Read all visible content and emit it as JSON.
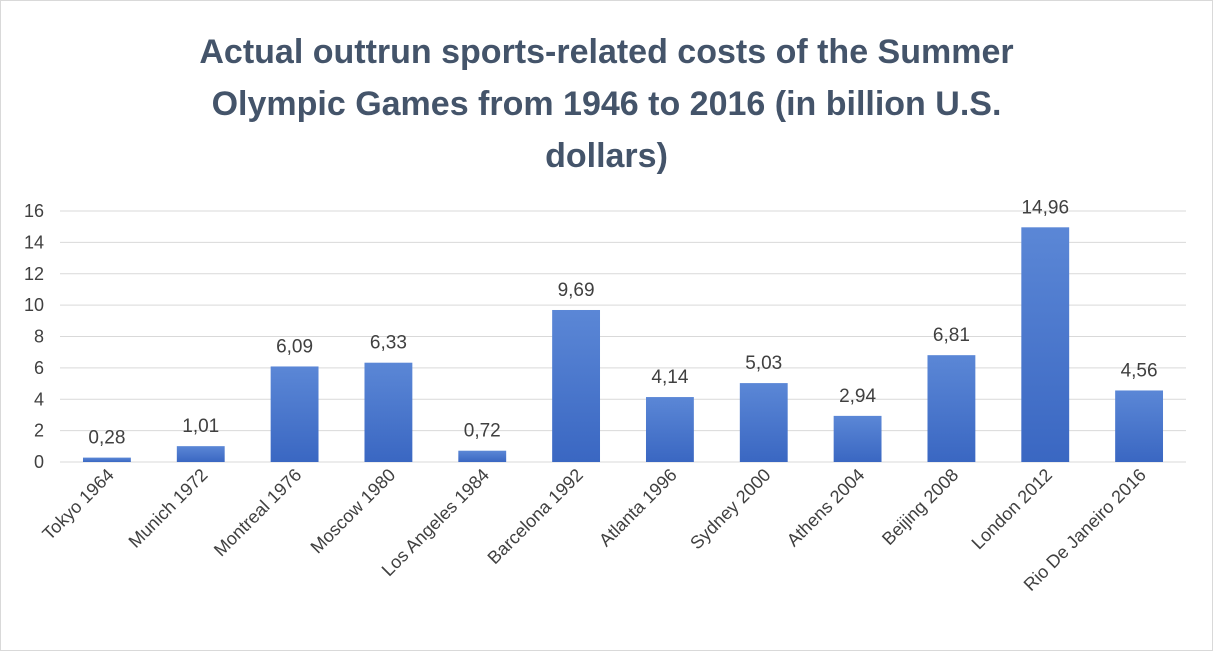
{
  "chart_data": {
    "type": "bar",
    "title_lines": [
      "Actual outtrun sports-related costs of the Summer",
      "Olympic Games from 1946 to 2016 (in billion U.S.",
      "dollars)"
    ],
    "categories": [
      "Tokyo 1964",
      "Munich 1972",
      "Montreal 1976",
      "Moscow 1980",
      "Los Angeles 1984",
      "Barcelona 1992",
      "Atlanta 1996",
      "Sydney 2000",
      "Athens 2004",
      "Beijing 2008",
      "London 2012",
      "Rio De Janeiro 2016"
    ],
    "values": [
      0.28,
      1.01,
      6.09,
      6.33,
      0.72,
      9.69,
      4.14,
      5.03,
      2.94,
      6.81,
      14.96,
      4.56
    ],
    "data_labels": [
      "0,28",
      "1,01",
      "6,09",
      "6,33",
      "0,72",
      "9,69",
      "4,14",
      "5,03",
      "2,94",
      "6,81",
      "14,96",
      "4,56"
    ],
    "y_ticks": [
      "0",
      "2",
      "4",
      "6",
      "8",
      "10",
      "12",
      "14",
      "16"
    ],
    "ylim": [
      0,
      16
    ],
    "grid": true,
    "legend": "none",
    "xlabel": "",
    "ylabel": "",
    "colors": {
      "bar_top": "#5b87d6",
      "bar_bottom": "#3a67c2",
      "grid": "#d9d9d9",
      "title": "#44546a",
      "text": "#404040"
    }
  }
}
